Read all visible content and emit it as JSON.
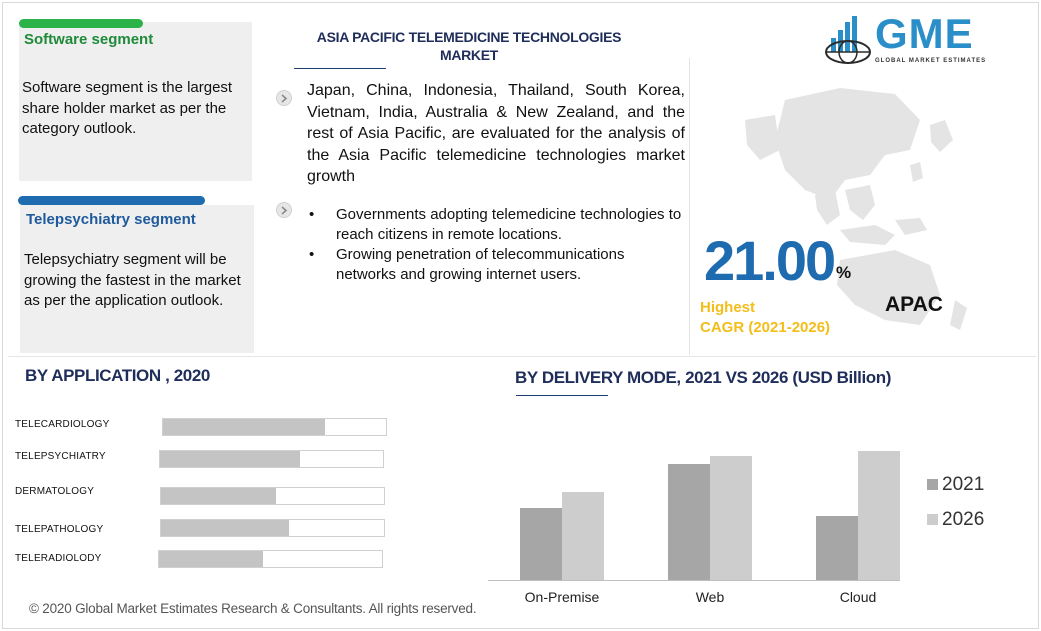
{
  "header": {
    "title": "ASIA PACIFIC TELEMEDICINE TECHNOLOGIES MARKET",
    "logo_text": "GME",
    "logo_subtitle": "GLOBAL MARKET ESTIMATES"
  },
  "cards": [
    {
      "title": "Software segment",
      "text": "Software segment is the largest share holder market as per the category outlook.",
      "bar_color": "#2bb34a",
      "title_color": "#1f8a3a"
    },
    {
      "title": "Telepsychiatry segment",
      "text": "Telepsychiatry segment will be growing the fastest in the market as per the application outlook.",
      "bar_color": "#1e6bb0",
      "title_color": "#1e5a9c"
    }
  ],
  "overview": {
    "paragraph": "Japan, China, Indonesia, Thailand, South Korea, Vietnam, India, Australia & New Zealand, and the rest of Asia Pacific, are evaluated for the analysis of the Asia Pacific telemedicine technologies market  growth",
    "bullets": [
      "Governments adopting telemedicine technologies to reach citizens in remote locations.",
      "Growing penetration of telecommunications networks and growing internet users."
    ],
    "bullet_glyph": "•",
    "icon": "chevron-right-icon"
  },
  "cagr": {
    "value": "21.00",
    "unit": "%",
    "label_line1": "Highest",
    "label_line2": "CAGR (2021-2026)",
    "region": "APAC",
    "number_color": "#1e6bb0",
    "label_color": "#f3bd1a"
  },
  "application_section": {
    "title": "BY  APPLICATION , 2020"
  },
  "delivery_section": {
    "title": "BY  DELIVERY MODE,  2021 VS 2026 (USD Billion)"
  },
  "footer": {
    "text": "© 2020 Global Market Estimates Research & Consultants. All rights reserved."
  },
  "chart_data": [
    {
      "type": "bar",
      "orientation": "horizontal",
      "title": "BY  APPLICATION , 2020",
      "categories": [
        "TELECARDIOLOGY",
        "TELEPSYCHIATRY",
        "DERMATOLOGY",
        "TELEPATHOLOGY",
        "TELERADIOLODY"
      ],
      "values": [
        0.72,
        0.62,
        0.51,
        0.57,
        0.46
      ],
      "value_scale": "share of bar track (no axis shown)",
      "bar_color": "#c4c4c4",
      "grid": false
    },
    {
      "type": "bar",
      "orientation": "vertical",
      "title": "BY  DELIVERY MODE,  2021 VS 2026 (USD Billion)",
      "categories": [
        "On-Premise",
        "Web",
        "Cloud"
      ],
      "series": [
        {
          "name": "2021",
          "values": [
            0.72,
            1.16,
            0.64
          ],
          "color": "#a6a6a6"
        },
        {
          "name": "2026",
          "values": [
            0.88,
            1.24,
            1.29
          ],
          "color": "#cdcdcd"
        }
      ],
      "ylim": [
        0,
        1.3
      ],
      "y_axis_shown": false,
      "legend_position": "right",
      "grid": false
    }
  ]
}
